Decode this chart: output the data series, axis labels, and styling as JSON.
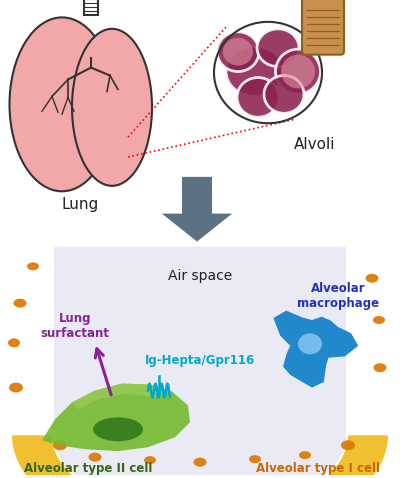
{
  "lung_color": "#F2A8A8",
  "lung_outline": "#333333",
  "alvoli_color": "#8B2252",
  "alvoli_pink": "#D05080",
  "alvoli_light": "#E090A0",
  "tube_color": "#C8904A",
  "tube_stripe": "#8B6020",
  "alveolar_wall_color": "#F0C030",
  "air_space_color": "#EAEAF5",
  "type2_color_light": "#99CC55",
  "type2_color_mid": "#77BB33",
  "type2_color_dark": "#3A8020",
  "macrophage_color": "#2288CC",
  "macrophage_light": "#77BBEE",
  "arrow_color": "#445566",
  "dot_color": "#DD7700",
  "lung_label": "Lung",
  "alvoli_label": "Alvoli",
  "air_space_label": "Air space",
  "macrophage_label": "Alveolar\nmacrophage",
  "surfactant_label": "Lung\nsurfactant",
  "receptor_label": "Ig-Hepta/Gpr116",
  "type2_label": "Alveolar type II cell",
  "type1_label": "Alveolar type I cell",
  "lung_label_color": "#222222",
  "alvoli_label_color": "#222222",
  "air_space_label_color": "#222222",
  "macrophage_label_color": "#2233BB",
  "surfactant_label_color": "#882299",
  "receptor_label_color": "#00AACC",
  "type2_label_color": "#336611",
  "type1_label_color": "#CC6600"
}
